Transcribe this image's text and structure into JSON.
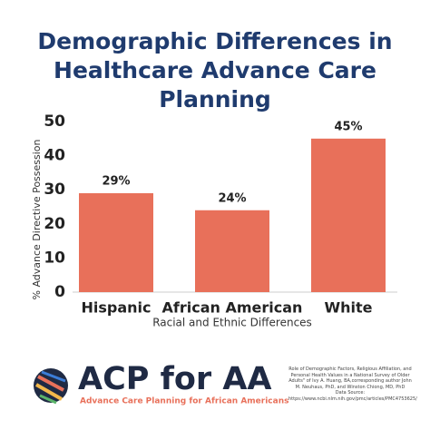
{
  "chart_data": {
    "type": "bar",
    "title": "Demographic Differences in Healthcare Advance Care Planning",
    "y_label": "% Advance Directive Possession",
    "x_label": "Racial and Ethnic Differences",
    "categories": [
      "Hispanic",
      "African American",
      "White"
    ],
    "values": [
      29,
      24,
      45
    ],
    "value_labels": [
      "29%",
      "24%",
      "45%"
    ],
    "color": "#e8705a",
    "ylim": [
      0,
      50
    ],
    "yticks": [
      0,
      10,
      20,
      30,
      40,
      50
    ],
    "grid": false
  },
  "footer": {
    "brand": "ACP for AA",
    "tagline": "Advance Care Planning for African Americans",
    "citation": "Role of Demographic Factors, Religious Affiliation, and Personal Health Values in a National Survey of Older Adults\" of Ivy A. Huang, BA,corresponding author John M. Neuhaus, PhD, and Winston Chiong, MD, PhD",
    "source_label": "Data Source:",
    "source_url": "https://www.ncbi.nlm.nih.gov/pmc/articles/PMC4753625/"
  }
}
